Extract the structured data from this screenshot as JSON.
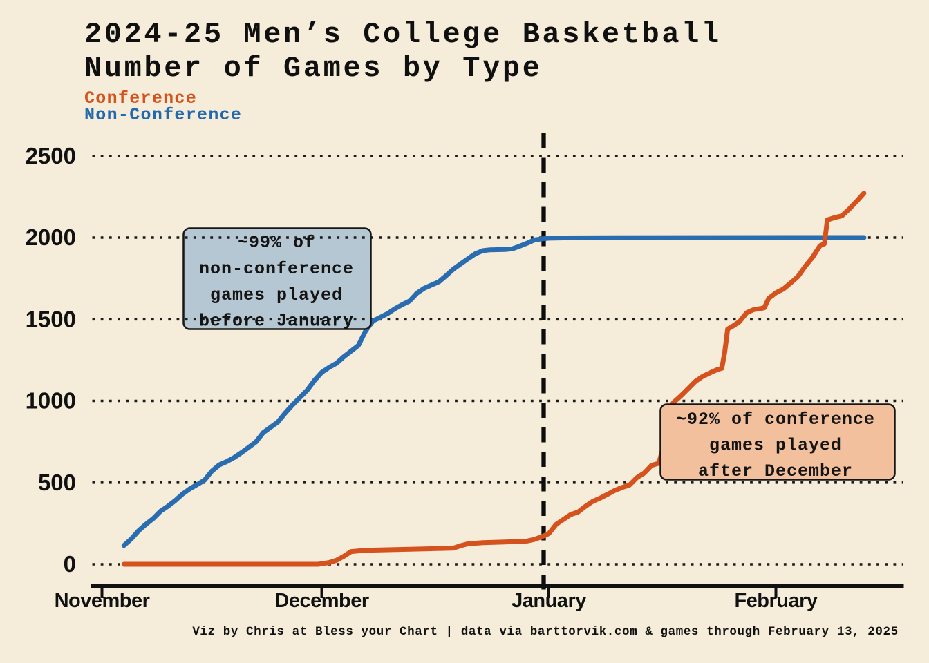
{
  "title": {
    "line1": "2024-25 Men’s College Basketball",
    "line2": "Number of Games by Type"
  },
  "legend": {
    "items": [
      {
        "label": "Conference",
        "color": "#d4521c"
      },
      {
        "label": "Non-Conference",
        "color": "#2268ae"
      }
    ]
  },
  "annotations": {
    "non_conference": {
      "fill": "#b5c7d3",
      "lines": [
        "~99% of",
        "non-conference",
        "games played",
        "before January"
      ]
    },
    "conference": {
      "fill": "#f3c09e",
      "lines": [
        "~92% of conference",
        "games played",
        "after December"
      ]
    }
  },
  "caption": {
    "text": "Viz by Chris at Bless your Chart | data via barttorvik.com & games through February 13, 2025"
  },
  "chart_data": {
    "type": "line",
    "title": "2024-25 Men's College Basketball Number of Games by Type",
    "grid": "horizontal dotted lines",
    "vline": {
      "style": "dashed vertical",
      "position": "January 1"
    },
    "x_axis": {
      "unit": "days since Nov 1, 2024",
      "tick_labels": [
        "November",
        "December",
        "January",
        "February"
      ],
      "tick_days": [
        0,
        30,
        61,
        92
      ],
      "range_days": [
        -1.4,
        109.4
      ]
    },
    "y_axis": {
      "tick_labels": [
        "2500",
        "2000",
        "1500",
        "1000",
        "500",
        "0"
      ],
      "ticks": [
        2500,
        2000,
        1500,
        1000,
        500,
        0
      ],
      "range": [
        0,
        2640
      ]
    },
    "series": [
      {
        "name": "Non-Conference",
        "color": "#2a6cb0",
        "points": [
          [
            3,
            115
          ],
          [
            4,
            155
          ],
          [
            5,
            205
          ],
          [
            6,
            245
          ],
          [
            7,
            280
          ],
          [
            8,
            325
          ],
          [
            9,
            355
          ],
          [
            10,
            390
          ],
          [
            11,
            430
          ],
          [
            12,
            462
          ],
          [
            13,
            488
          ],
          [
            14,
            515
          ],
          [
            15,
            570
          ],
          [
            16,
            608
          ],
          [
            17,
            628
          ],
          [
            18,
            652
          ],
          [
            19,
            682
          ],
          [
            20,
            715
          ],
          [
            21,
            748
          ],
          [
            22,
            805
          ],
          [
            23,
            838
          ],
          [
            24,
            870
          ],
          [
            25,
            925
          ],
          [
            26,
            975
          ],
          [
            27,
            1020
          ],
          [
            28,
            1065
          ],
          [
            29,
            1125
          ],
          [
            30,
            1175
          ],
          [
            31,
            1205
          ],
          [
            32,
            1230
          ],
          [
            33,
            1270
          ],
          [
            34,
            1305
          ],
          [
            35,
            1340
          ],
          [
            36,
            1430
          ],
          [
            37,
            1490
          ],
          [
            38,
            1512
          ],
          [
            39,
            1535
          ],
          [
            40,
            1565
          ],
          [
            41,
            1590
          ],
          [
            42,
            1612
          ],
          [
            43,
            1660
          ],
          [
            44,
            1690
          ],
          [
            45,
            1710
          ],
          [
            46,
            1730
          ],
          [
            47,
            1768
          ],
          [
            48,
            1808
          ],
          [
            49,
            1840
          ],
          [
            50,
            1872
          ],
          [
            51,
            1902
          ],
          [
            52,
            1920
          ],
          [
            53,
            1925
          ],
          [
            55,
            1927
          ],
          [
            56,
            1931
          ],
          [
            57,
            1947
          ],
          [
            58,
            1965
          ],
          [
            59,
            1985
          ],
          [
            60,
            1992
          ],
          [
            61,
            1996
          ],
          [
            63,
            1998
          ],
          [
            70,
            1999
          ],
          [
            104,
            2000
          ]
        ]
      },
      {
        "name": "Conference",
        "color": "#d5511d",
        "points": [
          [
            3,
            0
          ],
          [
            29.5,
            0
          ],
          [
            31,
            10
          ],
          [
            32,
            24
          ],
          [
            33,
            48
          ],
          [
            34,
            78
          ],
          [
            36,
            86
          ],
          [
            40,
            90
          ],
          [
            44,
            94
          ],
          [
            48,
            99
          ],
          [
            49,
            114
          ],
          [
            50,
            126
          ],
          [
            52,
            132
          ],
          [
            55,
            136
          ],
          [
            58,
            142
          ],
          [
            59,
            152
          ],
          [
            60,
            168
          ],
          [
            61,
            188
          ],
          [
            62,
            245
          ],
          [
            63,
            275
          ],
          [
            64,
            305
          ],
          [
            65,
            320
          ],
          [
            66,
            355
          ],
          [
            67,
            385
          ],
          [
            68,
            405
          ],
          [
            69,
            428
          ],
          [
            70,
            452
          ],
          [
            71,
            470
          ],
          [
            72,
            485
          ],
          [
            73,
            530
          ],
          [
            74,
            558
          ],
          [
            75,
            605
          ],
          [
            76,
            618
          ],
          [
            76.5,
            700
          ],
          [
            77,
            880
          ],
          [
            77.5,
            955
          ],
          [
            78,
            990
          ],
          [
            79,
            1030
          ],
          [
            80,
            1075
          ],
          [
            81,
            1120
          ],
          [
            82,
            1150
          ],
          [
            83,
            1172
          ],
          [
            84,
            1192
          ],
          [
            84.6,
            1200
          ],
          [
            85,
            1300
          ],
          [
            85.4,
            1440
          ],
          [
            86,
            1455
          ],
          [
            87,
            1485
          ],
          [
            88,
            1540
          ],
          [
            89,
            1560
          ],
          [
            90,
            1566
          ],
          [
            90.4,
            1570
          ],
          [
            91,
            1628
          ],
          [
            92,
            1662
          ],
          [
            93,
            1685
          ],
          [
            94,
            1722
          ],
          [
            95,
            1762
          ],
          [
            96,
            1825
          ],
          [
            97,
            1880
          ],
          [
            98,
            1950
          ],
          [
            98.6,
            1962
          ],
          [
            99,
            2108
          ],
          [
            100,
            2122
          ],
          [
            101,
            2133
          ],
          [
            102,
            2175
          ],
          [
            103,
            2222
          ],
          [
            104,
            2272
          ]
        ]
      }
    ]
  }
}
